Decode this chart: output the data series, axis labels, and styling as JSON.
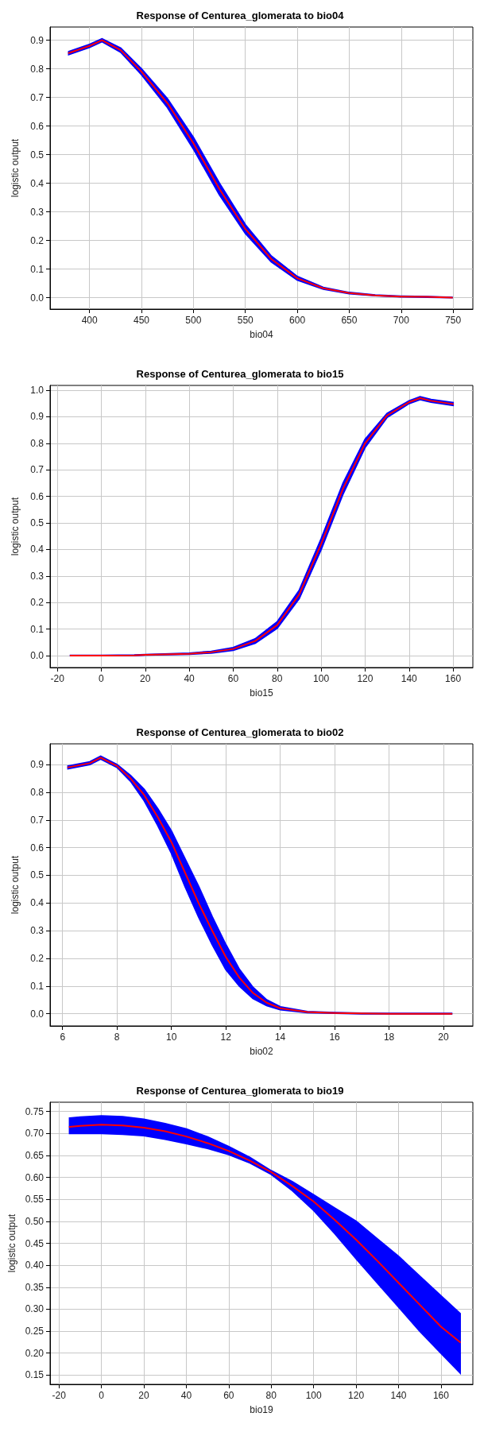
{
  "chart_data": [
    {
      "type": "line",
      "title": "Response of Centurea_glomerata to bio04",
      "xlabel": "bio04",
      "ylabel": "logistic output",
      "xlim": [
        362,
        769
      ],
      "xticks": [
        400,
        450,
        500,
        550,
        600,
        650,
        700,
        750
      ],
      "ylim": [
        -0.04,
        0.946
      ],
      "yticks": [
        {
          "value": 0,
          "label": "0.0"
        },
        0.1,
        0.2,
        0.3,
        0.4,
        0.5,
        0.6,
        0.7,
        0.8,
        0.9
      ],
      "grid": true,
      "marker": "none",
      "line_style": "solid",
      "series": [
        {
          "color": "#ff0000",
          "x": [
            380,
            400,
            412,
            430,
            450,
            475,
            500,
            525,
            550,
            575,
            600,
            625,
            650,
            675,
            700,
            725,
            749
          ],
          "values": [
            0.855,
            0.88,
            0.9,
            0.865,
            0.79,
            0.68,
            0.54,
            0.38,
            0.24,
            0.135,
            0.068,
            0.033,
            0.016,
            0.008,
            0.004,
            0.003,
            0.0
          ],
          "lower": [
            0.85,
            0.875,
            0.895,
            0.858,
            0.78,
            0.665,
            0.52,
            0.36,
            0.225,
            0.125,
            0.062,
            0.03,
            0.014,
            0.007,
            0.003,
            0.002,
            0.0
          ],
          "upper": [
            0.86,
            0.885,
            0.905,
            0.872,
            0.8,
            0.695,
            0.56,
            0.4,
            0.255,
            0.145,
            0.074,
            0.036,
            0.018,
            0.009,
            0.005,
            0.004,
            0.001
          ]
        }
      ]
    },
    {
      "type": "line",
      "title": "Response of Centurea_glomerata to bio15",
      "xlabel": "bio15",
      "ylabel": "logistic output",
      "xlim": [
        -23.3,
        169
      ],
      "xticks": [
        -20,
        0,
        20,
        40,
        60,
        80,
        100,
        120,
        140,
        160
      ],
      "ylim": [
        -0.045,
        1.018
      ],
      "yticks": [
        {
          "value": 0,
          "label": "0.0"
        },
        0.1,
        0.2,
        0.3,
        0.4,
        0.5,
        0.6,
        0.7,
        0.8,
        0.9,
        {
          "value": 1,
          "label": "1.0"
        }
      ],
      "grid": true,
      "marker": "none",
      "line_style": "solid",
      "series": [
        {
          "color": "#ff0000",
          "x": [
            -14,
            0,
            15,
            20,
            40,
            50,
            60,
            70,
            80,
            90,
            100,
            110,
            120,
            130,
            140,
            145,
            150,
            160
          ],
          "values": [
            0.0,
            0.0,
            0.001,
            0.003,
            0.007,
            0.013,
            0.025,
            0.055,
            0.115,
            0.23,
            0.42,
            0.63,
            0.8,
            0.905,
            0.955,
            0.97,
            0.96,
            0.948
          ],
          "lower": [
            0.0,
            0.0,
            0.0,
            0.002,
            0.005,
            0.01,
            0.02,
            0.047,
            0.103,
            0.215,
            0.4,
            0.61,
            0.785,
            0.898,
            0.95,
            0.965,
            0.955,
            0.943
          ],
          "upper": [
            0.001,
            0.001,
            0.002,
            0.004,
            0.009,
            0.016,
            0.03,
            0.063,
            0.127,
            0.245,
            0.44,
            0.65,
            0.815,
            0.912,
            0.96,
            0.975,
            0.965,
            0.953
          ]
        }
      ]
    },
    {
      "type": "line",
      "title": "Response of Centurea_glomerata to bio02",
      "xlabel": "bio02",
      "ylabel": "logistic output",
      "xlim": [
        5.54,
        21.08
      ],
      "xticks": [
        6,
        8,
        10,
        12,
        14,
        16,
        18,
        20
      ],
      "ylim": [
        -0.044,
        0.975
      ],
      "yticks": [
        {
          "value": 0,
          "label": "0.0"
        },
        0.1,
        0.2,
        0.3,
        0.4,
        0.5,
        0.6,
        0.7,
        0.8,
        0.9
      ],
      "grid": true,
      "marker": "none",
      "line_style": "solid",
      "series": [
        {
          "color": "#ff0000",
          "x": [
            6.2,
            7,
            7.4,
            8,
            8.5,
            9,
            9.5,
            10,
            10.5,
            11,
            11.5,
            12,
            12.5,
            13,
            13.5,
            14,
            15,
            16,
            17,
            18,
            20.3
          ],
          "values": [
            0.89,
            0.905,
            0.925,
            0.895,
            0.85,
            0.79,
            0.71,
            0.62,
            0.51,
            0.4,
            0.3,
            0.205,
            0.13,
            0.075,
            0.04,
            0.02,
            0.006,
            0.003,
            0.001,
            0.0,
            0.0
          ],
          "lower": [
            0.885,
            0.9,
            0.92,
            0.89,
            0.84,
            0.77,
            0.68,
            0.58,
            0.46,
            0.35,
            0.25,
            0.16,
            0.1,
            0.055,
            0.03,
            0.015,
            0.004,
            0.002,
            0.0,
            0.0,
            0.0
          ],
          "upper": [
            0.895,
            0.91,
            0.93,
            0.9,
            0.86,
            0.81,
            0.74,
            0.66,
            0.56,
            0.46,
            0.35,
            0.25,
            0.16,
            0.095,
            0.05,
            0.025,
            0.008,
            0.004,
            0.002,
            0.001,
            0.001
          ]
        }
      ]
    },
    {
      "type": "line",
      "title": "Response of Centurea_glomerata to bio19",
      "xlabel": "bio19",
      "ylabel": "logistic output",
      "xlim": [
        -24.2,
        175
      ],
      "xticks": [
        -20,
        0,
        20,
        40,
        60,
        80,
        100,
        120,
        140,
        160
      ],
      "ylim": [
        0.129,
        0.771
      ],
      "yticks": [
        0.15,
        {
          "value": 0.2,
          "label": "0.20"
        },
        0.25,
        {
          "value": 0.3,
          "label": "0.30"
        },
        0.35,
        {
          "value": 0.4,
          "label": "0.40"
        },
        0.45,
        {
          "value": 0.5,
          "label": "0.50"
        },
        0.55,
        {
          "value": 0.6,
          "label": "0.60"
        },
        0.65,
        {
          "value": 0.7,
          "label": "0.70"
        },
        0.75
      ],
      "grid": true,
      "marker": "none",
      "line_style": "solid",
      "series": [
        {
          "color": "#ff0000",
          "x": [
            -15,
            -10,
            0,
            10,
            20,
            30,
            40,
            50,
            60,
            70,
            80,
            90,
            100,
            110,
            120,
            130,
            140,
            150,
            160,
            169
          ],
          "values": [
            0.715,
            0.717,
            0.72,
            0.718,
            0.713,
            0.705,
            0.693,
            0.678,
            0.66,
            0.638,
            0.612,
            0.58,
            0.545,
            0.503,
            0.458,
            0.41,
            0.36,
            0.31,
            0.26,
            0.225
          ],
          "lower": [
            0.7,
            0.7,
            0.7,
            0.698,
            0.695,
            0.687,
            0.677,
            0.666,
            0.652,
            0.633,
            0.607,
            0.57,
            0.525,
            0.472,
            0.415,
            0.36,
            0.305,
            0.25,
            0.2,
            0.155
          ],
          "upper": [
            0.735,
            0.737,
            0.74,
            0.738,
            0.732,
            0.722,
            0.71,
            0.692,
            0.67,
            0.645,
            0.615,
            0.59,
            0.56,
            0.53,
            0.5,
            0.46,
            0.42,
            0.375,
            0.33,
            0.29
          ]
        }
      ]
    }
  ]
}
